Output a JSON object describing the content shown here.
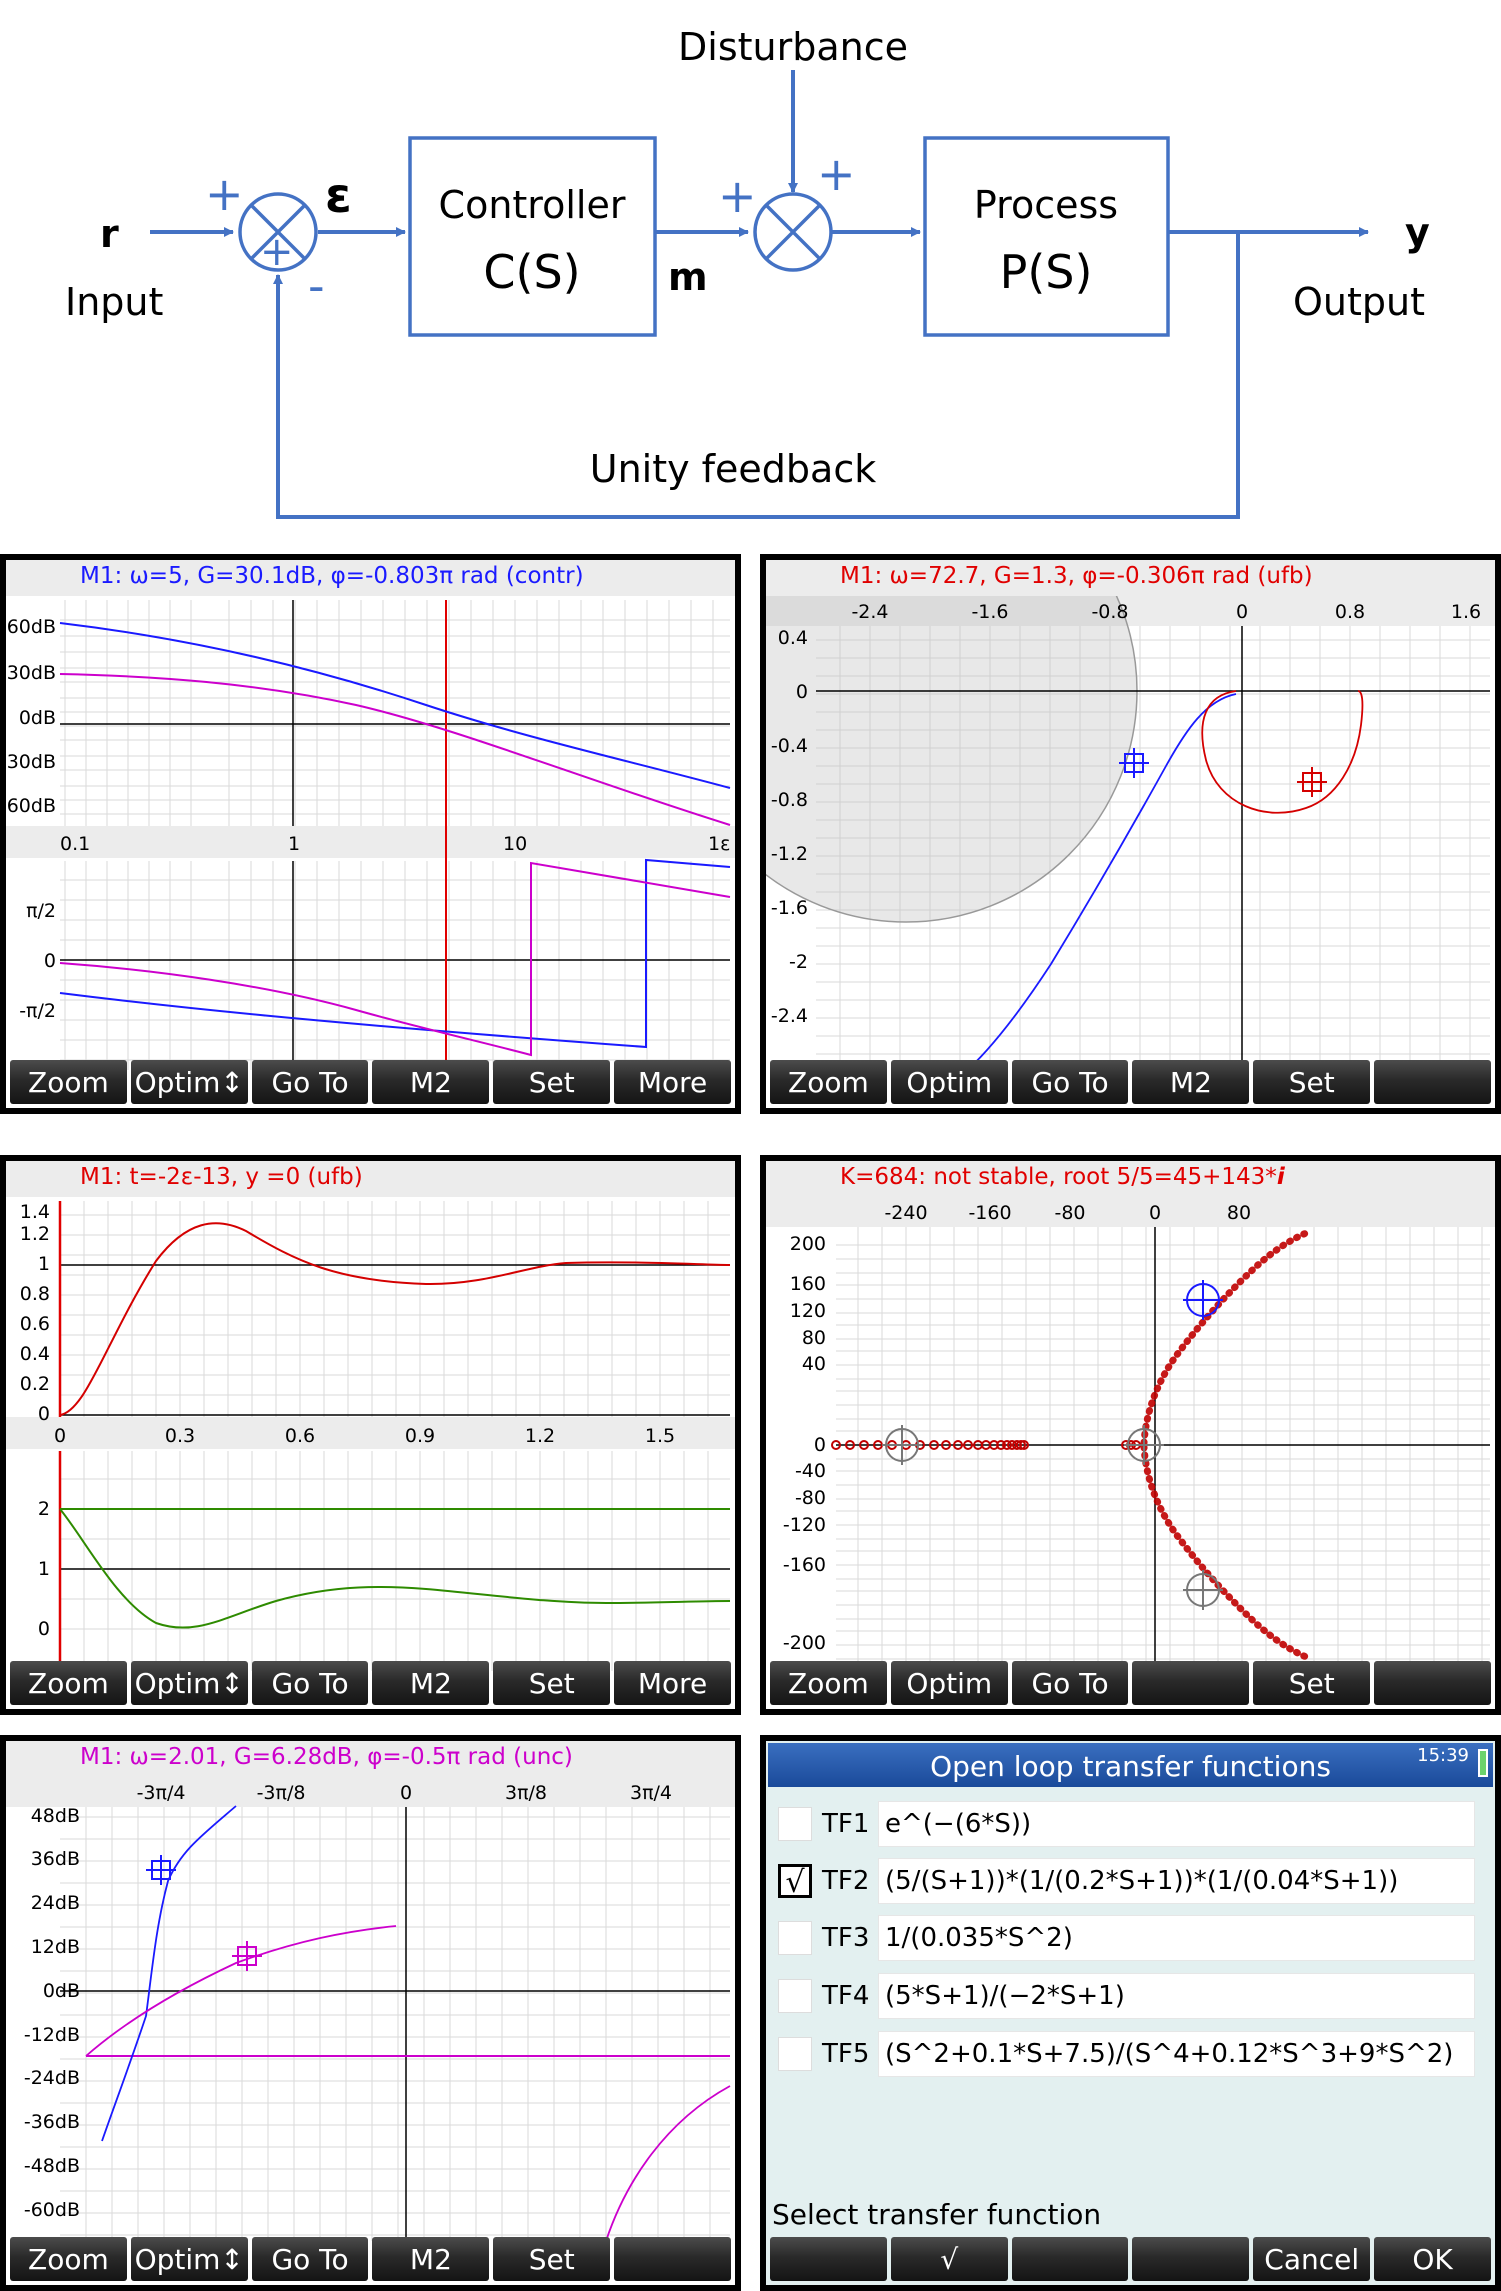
{
  "block_diagram": {
    "input_symbol": "r",
    "input_label": "Input",
    "error_symbol": "ε",
    "controller_title": "Controller",
    "controller_fn": "C(S)",
    "manipulated_symbol": "m",
    "disturbance_label": "Disturbance",
    "process_title": "Process",
    "process_fn": "P(S)",
    "output_symbol": "y",
    "output_label": "Output",
    "feedback_label": "Unity feedback",
    "plus": "+",
    "minus": "-",
    "colors": {
      "line": "#4472c4",
      "text": "#000000"
    }
  },
  "panels": {
    "bode": {
      "header": "M1: ω=5, G=30.1dB, φ=-0.803π rad (contr)",
      "header_color": "#1a1aff",
      "mag_ticks": [
        "60dB",
        "30dB",
        "0dB",
        "-30dB",
        "-60dB"
      ],
      "freq_ticks": [
        "0.1",
        "1",
        "10",
        "1ε"
      ],
      "phase_ticks": [
        "π/2",
        "0",
        "-π/2"
      ],
      "softkeys": [
        "Zoom",
        "Optim↕",
        "Go To",
        "M2",
        "Set",
        "More"
      ]
    },
    "nyquist": {
      "header": "M1: ω=72.7, G=1.3, φ=-0.306π rad (ufb)",
      "header_color": "#e00000",
      "x_ticks": [
        "-2.4",
        "-1.6",
        "-0.8",
        "0",
        "0.8",
        "1.6"
      ],
      "y_ticks": [
        "0.4",
        "0",
        "-0.4",
        "-0.8",
        "-1.2",
        "-1.6",
        "-2",
        "-2.4"
      ],
      "softkeys": [
        "Zoom",
        "Optim",
        "Go To",
        "M2",
        "Set",
        ""
      ]
    },
    "step": {
      "header": "M1: t=-2ε-13, y =0 (ufb)",
      "header_color": "#e00000",
      "y_ticks_top": [
        "1.4",
        "1.2",
        "1",
        "0.8",
        "0.6",
        "0.4",
        "0.2",
        "0"
      ],
      "x_ticks": [
        "0",
        "0.3",
        "0.6",
        "0.9",
        "1.2",
        "1.5"
      ],
      "y_ticks_bottom": [
        "2",
        "1",
        "0"
      ],
      "softkeys": [
        "Zoom",
        "Optim↕",
        "Go To",
        "M2",
        "Set",
        "More"
      ]
    },
    "root_locus": {
      "header": "K=684: not stable, root 5/5=45+143*",
      "header_i": "i",
      "header_color": "#e00000",
      "x_ticks": [
        "-240",
        "-160",
        "-80",
        "0",
        "80"
      ],
      "y_ticks": [
        "200",
        "160",
        "120",
        "80",
        "40",
        "0",
        "-40",
        "-80",
        "-120",
        "-160",
        "-200"
      ],
      "softkeys": [
        "Zoom",
        "Optim",
        "Go To",
        "",
        "Set",
        ""
      ]
    },
    "nichols": {
      "header": "M1: ω=2.01, G=6.28dB, φ=-0.5π rad (unc)",
      "header_color": "#cc00cc",
      "x_ticks": [
        "-3π/4",
        "-3π/8",
        "0",
        "3π/8",
        "3π/4"
      ],
      "y_ticks": [
        "48dB",
        "36dB",
        "24dB",
        "12dB",
        "0dB",
        "-12dB",
        "-24dB",
        "-36dB",
        "-48dB",
        "-60dB"
      ],
      "softkeys": [
        "Zoom",
        "Optim↕",
        "Go To",
        "M2",
        "Set",
        ""
      ]
    },
    "tf_list": {
      "title": "Open loop transfer functions",
      "clock": "15:39",
      "rows": [
        {
          "name": "TF1",
          "expr": "e^(−(6*S))",
          "checked": false,
          "mark": ""
        },
        {
          "name": "TF2",
          "expr": "(5/(S+1))*(1/(0.2*S+1))*(1/(0.04*S+1))",
          "checked": true,
          "mark": "√"
        },
        {
          "name": "TF3",
          "expr": "1/(0.035*S^2)",
          "checked": false,
          "mark": ""
        },
        {
          "name": "TF4",
          "expr": "(5*S+1)/(−2*S+1)",
          "checked": false,
          "mark": ""
        },
        {
          "name": "TF5",
          "expr": "(S^2+0.1*S+7.5)/(S^4+0.12*S^3+9*S^2)",
          "checked": false,
          "mark": ""
        }
      ],
      "prompt": "Select transfer function",
      "softkeys": [
        "",
        "√",
        "",
        "",
        "Cancel",
        "OK"
      ]
    }
  }
}
